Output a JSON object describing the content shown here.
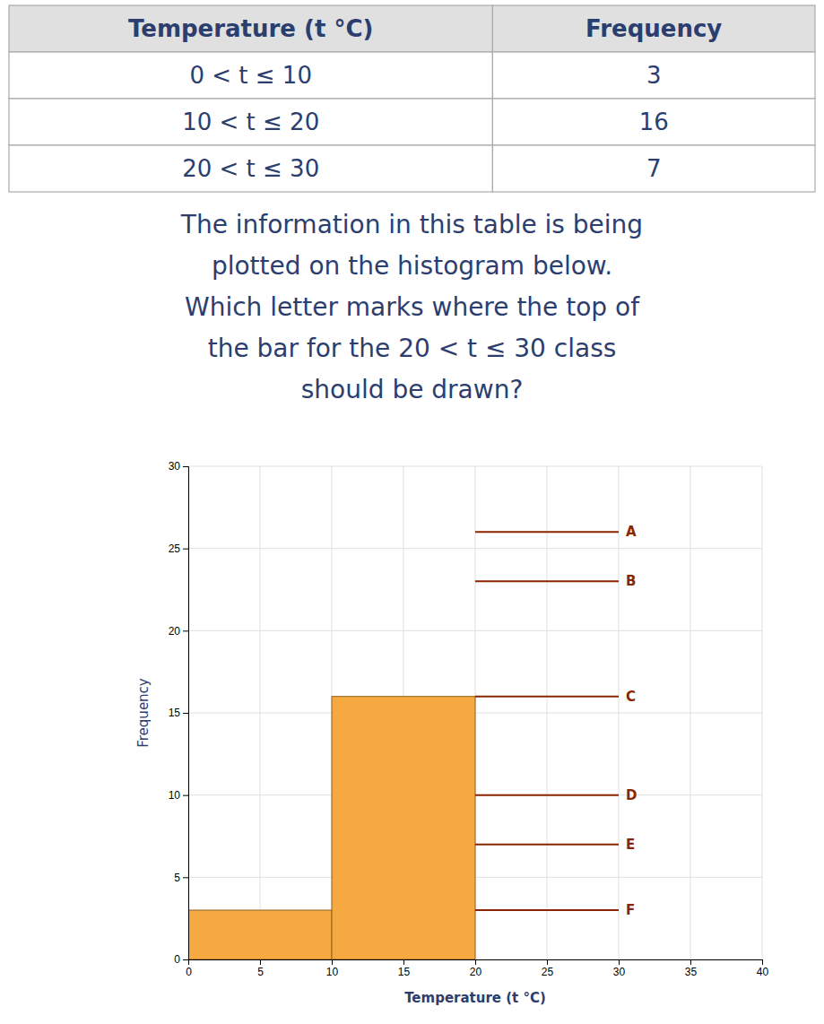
{
  "chart_data": [
    {
      "type": "table",
      "columns": [
        "Temperature (t °C)",
        "Frequency"
      ],
      "rows": [
        [
          "0 < t ≤ 10",
          "3"
        ],
        [
          "10 < t ≤ 20",
          "16"
        ],
        [
          "20 < t ≤ 30",
          "7"
        ]
      ]
    },
    {
      "type": "text",
      "lines": [
        "The information in this table is being",
        "plotted on the histogram below.",
        "Which letter marks where the top of",
        "the bar for the 20 < t ≤ 30 class",
        "should be drawn?"
      ]
    },
    {
      "type": "histogram",
      "bins": [
        0,
        10,
        20
      ],
      "values": [
        3,
        16
      ],
      "color": "#F5A940",
      "xlabel": "Temperature (t °C)",
      "ylabel": "Frequency",
      "xlim": [
        0,
        40
      ],
      "ylim": [
        0,
        30
      ],
      "xticks": [
        0,
        5,
        10,
        15,
        20,
        25,
        30,
        35,
        40
      ],
      "yticks": [
        0,
        5,
        10,
        15,
        20,
        25,
        30
      ],
      "grid": true,
      "annotations": [
        {
          "label": "A",
          "y": 26,
          "x_start": 20,
          "x_end": 30,
          "color": "#8B2500"
        },
        {
          "label": "B",
          "y": 23,
          "x_start": 20,
          "x_end": 30,
          "color": "#8B2500"
        },
        {
          "label": "C",
          "y": 16,
          "x_start": 20,
          "x_end": 30,
          "color": "#8B2500"
        },
        {
          "label": "D",
          "y": 10,
          "x_start": 20,
          "x_end": 30,
          "color": "#8B2500"
        },
        {
          "label": "E",
          "y": 7,
          "x_start": 20,
          "x_end": 30,
          "color": "#8B2500"
        },
        {
          "label": "F",
          "y": 3,
          "x_start": 20,
          "x_end": 30,
          "color": "#8B2500"
        }
      ]
    }
  ]
}
